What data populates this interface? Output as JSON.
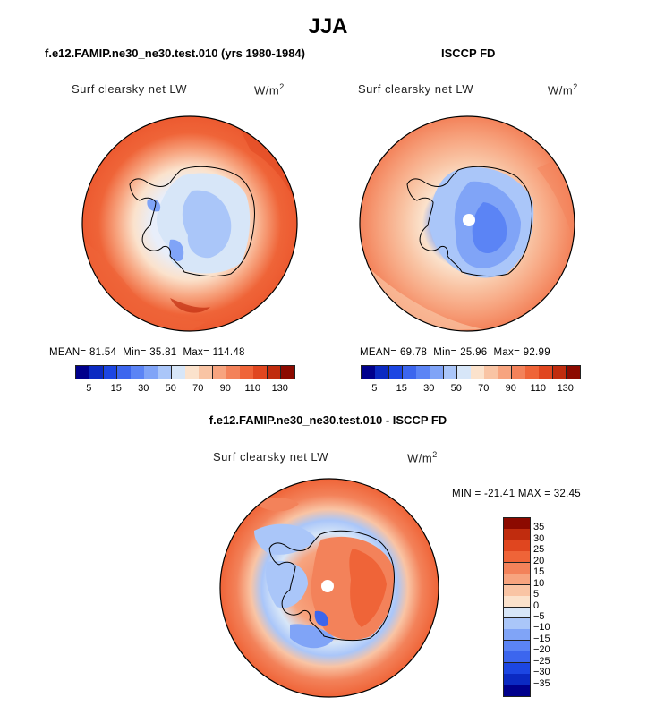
{
  "title": "JJA",
  "panels": [
    {
      "id": "model",
      "title": "f.e12.FAMIP.ne30_ne30.test.010 (yrs 1980-1984)",
      "variable": "Surf clearsky net LW",
      "units": "W/m",
      "units_exp": "2",
      "stats": {
        "mean_label": "MEAN=",
        "mean": "81.54",
        "min_label": "Min=",
        "min": "35.81",
        "max_label": "Max=",
        "max": "114.48"
      }
    },
    {
      "id": "obs",
      "title": "ISCCP FD",
      "variable": "Surf clearsky net LW",
      "units": "W/m",
      "units_exp": "2",
      "stats": {
        "mean_label": "MEAN=",
        "mean": "69.78",
        "min_label": "Min=",
        "min": "25.96",
        "max_label": "Max=",
        "max": "92.99"
      }
    },
    {
      "id": "diff",
      "title": "f.e12.FAMIP.ne30_ne30.test.010 - ISCCP FD",
      "variable": "Surf clearsky net LW",
      "units": "W/m",
      "units_exp": "2",
      "minmax": "MIN = -21.41 MAX =  32.45"
    }
  ],
  "colorbar_abs": {
    "colors": [
      "#00008c",
      "#0b2ac2",
      "#1c46e2",
      "#3c66ee",
      "#5b84f5",
      "#80a4f7",
      "#aac6f9",
      "#d7e6f8",
      "#fbe2cc",
      "#f9c4a4",
      "#f7a47f",
      "#f3825a",
      "#ef6438",
      "#e0461f",
      "#c02c0e",
      "#8c0a00"
    ],
    "ticks": [
      "5",
      "15",
      "30",
      "50",
      "70",
      "90",
      "110",
      "130"
    ]
  },
  "colorbar_diff": {
    "colors": [
      "#00008c",
      "#0b2ac2",
      "#1c46e2",
      "#3c66ee",
      "#5b84f5",
      "#80a4f7",
      "#aac6f9",
      "#d7e6f8",
      "#fbe2cc",
      "#f9c4a4",
      "#f7a47f",
      "#f3825a",
      "#ef6438",
      "#e0461f",
      "#c02c0e",
      "#8c0a00"
    ],
    "ticks": [
      "35",
      "30",
      "25",
      "20",
      "15",
      "10",
      "5",
      "0",
      "−5",
      "−10",
      "−15",
      "−20",
      "−25",
      "−30",
      "−35"
    ]
  }
}
